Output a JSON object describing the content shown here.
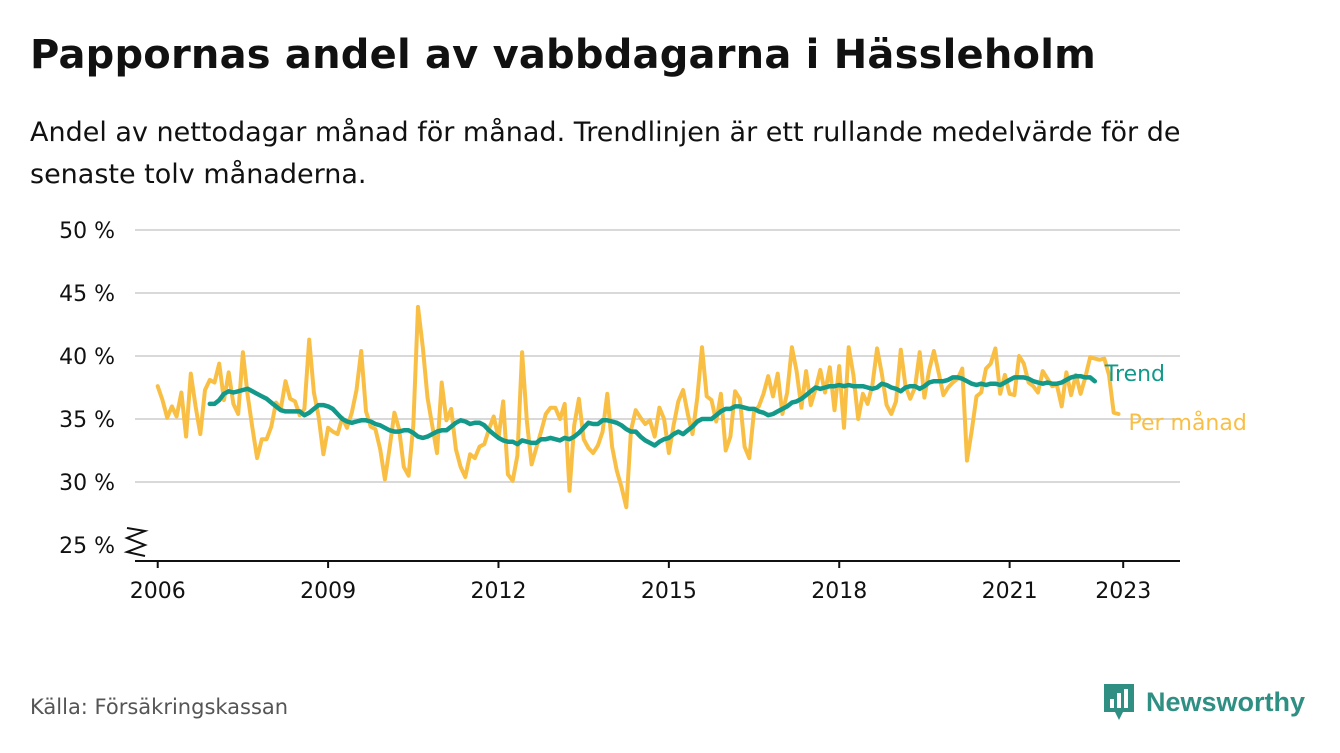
{
  "title": "Pappornas andel av vabbdagarna i Hässleholm",
  "subtitle": "Andel av nettodagar månad för månad. Trendlinjen är ett rullande medelvärde för de senaste tolv månaderna.",
  "source": "Källa: Försäkringskassan",
  "brand": {
    "name": "Newsworthy",
    "icon": "newsworthy-logo-icon",
    "color": "#2f8f83"
  },
  "chart_data": {
    "type": "line",
    "ylim": [
      25,
      50
    ],
    "xlim": [
      2005.6,
      2024.0
    ],
    "y_ticks": [
      {
        "value": 25,
        "label": "25 %"
      },
      {
        "value": 30,
        "label": "30 %"
      },
      {
        "value": 35,
        "label": "35 %"
      },
      {
        "value": 40,
        "label": "40 %"
      },
      {
        "value": 45,
        "label": "45 %"
      },
      {
        "value": 50,
        "label": "50 %"
      }
    ],
    "x_ticks": [
      {
        "value": 2006,
        "label": "2006"
      },
      {
        "value": 2009,
        "label": "2009"
      },
      {
        "value": 2012,
        "label": "2012"
      },
      {
        "value": 2015,
        "label": "2015"
      },
      {
        "value": 2018,
        "label": "2018"
      },
      {
        "value": 2021,
        "label": "2021"
      },
      {
        "value": 2023,
        "label": "2023"
      }
    ],
    "axis_break": true,
    "grid": true,
    "legend": "direct labels at line ends",
    "series": [
      {
        "name": "Per månad",
        "color": "#f9bf45",
        "x_start": 2006.0,
        "step": 0.0833333,
        "values": [
          37.6,
          36.5,
          35.1,
          36.0,
          35.2,
          37.1,
          33.6,
          38.6,
          36.0,
          33.8,
          37.3,
          38.1,
          37.9,
          39.4,
          36.5,
          38.7,
          36.2,
          35.4,
          40.3,
          36.9,
          34.3,
          31.9,
          33.4,
          33.4,
          34.4,
          36.3,
          35.8,
          38.0,
          36.6,
          36.4,
          35.3,
          35.8,
          41.3,
          37.1,
          35.2,
          32.2,
          34.3,
          34.0,
          33.8,
          35.1,
          34.3,
          35.5,
          37.3,
          40.4,
          35.6,
          34.4,
          34.2,
          32.6,
          30.2,
          32.7,
          35.5,
          34.2,
          31.2,
          30.5,
          34.5,
          43.9,
          40.7,
          36.7,
          34.5,
          32.3,
          37.9,
          34.9,
          35.8,
          32.6,
          31.2,
          30.4,
          32.2,
          31.9,
          32.8,
          33.0,
          34.2,
          35.2,
          33.5,
          36.4,
          30.6,
          30.1,
          32.1,
          40.3,
          34.8,
          31.4,
          32.7,
          34.0,
          35.4,
          35.9,
          35.9,
          35.0,
          36.2,
          29.3,
          34.5,
          36.6,
          33.4,
          32.7,
          32.3,
          32.9,
          34.0,
          37.0,
          32.8,
          30.9,
          29.6,
          28.0,
          34.1,
          35.7,
          35.1,
          34.6,
          34.9,
          33.6,
          35.9,
          35.0,
          32.3,
          34.5,
          36.4,
          37.3,
          35.4,
          33.8,
          36.7,
          40.7,
          36.8,
          36.5,
          34.8,
          37.0,
          32.5,
          33.6,
          37.2,
          36.6,
          32.8,
          31.9,
          35.6,
          36.0,
          37.0,
          38.4,
          36.8,
          38.6,
          35.4,
          37.1,
          40.7,
          38.8,
          35.9,
          38.8,
          36.1,
          37.4,
          38.9,
          37.1,
          39.1,
          35.7,
          39.2,
          34.3,
          40.7,
          38.5,
          35.0,
          37.0,
          36.2,
          37.7,
          40.6,
          38.6,
          36.1,
          35.4,
          36.4,
          40.5,
          37.6,
          36.6,
          37.5,
          40.3,
          36.7,
          38.9,
          40.4,
          38.7,
          36.9,
          37.5,
          37.9,
          38.2,
          39.0,
          31.7,
          34.1,
          36.8,
          37.1,
          39.0,
          39.4,
          40.6,
          37.0,
          38.5,
          37.0,
          36.9,
          40.0,
          39.4,
          37.9,
          37.6,
          37.1,
          38.8,
          38.2,
          37.6,
          37.7,
          36.0,
          38.7,
          36.9,
          38.5,
          37.0,
          38.3,
          39.9,
          39.8,
          39.7,
          39.8,
          38.5,
          35.5,
          35.4
        ]
      },
      {
        "name": "Trend",
        "color": "#13998a",
        "x_start": 2006.9167,
        "step": 0.0833333,
        "values": [
          36.2,
          36.2,
          36.5,
          37.0,
          37.2,
          37.1,
          37.2,
          37.3,
          37.4,
          37.2,
          37.0,
          36.8,
          36.6,
          36.3,
          36.0,
          35.7,
          35.6,
          35.6,
          35.6,
          35.6,
          35.3,
          35.5,
          35.8,
          36.1,
          36.1,
          36.0,
          35.8,
          35.4,
          35.0,
          34.8,
          34.7,
          34.8,
          34.9,
          34.9,
          34.8,
          34.6,
          34.5,
          34.3,
          34.1,
          34.0,
          34.0,
          34.1,
          34.1,
          33.9,
          33.6,
          33.5,
          33.6,
          33.8,
          34.0,
          34.1,
          34.1,
          34.4,
          34.7,
          34.9,
          34.8,
          34.6,
          34.7,
          34.7,
          34.5,
          34.1,
          33.8,
          33.5,
          33.3,
          33.2,
          33.2,
          33.0,
          33.3,
          33.2,
          33.1,
          33.1,
          33.4,
          33.4,
          33.5,
          33.4,
          33.3,
          33.5,
          33.4,
          33.6,
          33.9,
          34.3,
          34.7,
          34.6,
          34.6,
          34.9,
          34.9,
          34.8,
          34.7,
          34.5,
          34.2,
          34.0,
          34.0,
          33.6,
          33.3,
          33.1,
          32.9,
          33.2,
          33.4,
          33.5,
          33.8,
          34.0,
          33.8,
          34.1,
          34.4,
          34.8,
          35.0,
          35.0,
          35.0,
          35.3,
          35.6,
          35.8,
          35.8,
          36.0,
          36.0,
          35.9,
          35.8,
          35.8,
          35.6,
          35.5,
          35.3,
          35.4,
          35.6,
          35.8,
          36.0,
          36.3,
          36.4,
          36.6,
          36.9,
          37.2,
          37.5,
          37.4,
          37.5,
          37.6,
          37.6,
          37.7,
          37.6,
          37.7,
          37.6,
          37.6,
          37.6,
          37.5,
          37.4,
          37.5,
          37.8,
          37.7,
          37.5,
          37.4,
          37.2,
          37.5,
          37.6,
          37.6,
          37.4,
          37.6,
          37.9,
          38.0,
          38.0,
          38.0,
          38.1,
          38.3,
          38.3,
          38.2,
          38.0,
          37.8,
          37.7,
          37.8,
          37.7,
          37.8,
          37.8,
          37.7,
          37.9,
          38.1,
          38.3,
          38.3,
          38.3,
          38.2,
          38.0,
          37.9,
          37.8,
          37.9,
          37.8,
          37.8,
          37.9,
          38.1,
          38.3,
          38.4,
          38.4,
          38.3,
          38.3,
          38.0
        ]
      }
    ]
  }
}
